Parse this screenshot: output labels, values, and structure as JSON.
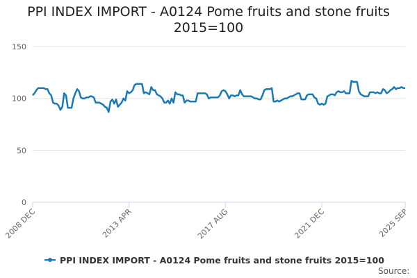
{
  "chart_data": {
    "type": "line",
    "title": "PPI INDEX IMPORT - A0124 Pome fruits and stone fruits 2015=100",
    "source": "Source:",
    "categories": [
      "2008 DEC",
      null,
      null,
      null,
      null,
      null,
      null,
      null,
      null,
      null,
      null,
      null,
      null,
      null,
      null,
      null,
      null,
      null,
      null,
      null,
      null,
      null,
      null,
      null,
      null,
      null,
      null,
      null,
      null,
      null,
      null,
      null,
      null,
      null,
      null,
      null,
      null,
      null,
      null,
      null,
      null,
      null,
      null,
      null,
      null,
      null,
      null,
      null,
      null,
      null,
      null,
      null,
      "2013 APR",
      null,
      null,
      null,
      null,
      null,
      null,
      null,
      null,
      null,
      null,
      null,
      null,
      null,
      null,
      null,
      null,
      null,
      null,
      null,
      null,
      null,
      null,
      null,
      null,
      null,
      null,
      null,
      null,
      null,
      null,
      null,
      null,
      null,
      null,
      null,
      null,
      null,
      null,
      null,
      null,
      null,
      null,
      null,
      null,
      null,
      null,
      null,
      null,
      null,
      null,
      null,
      "2017 AUG",
      null,
      null,
      null,
      null,
      null,
      null,
      null,
      null,
      null,
      null,
      null,
      null,
      null,
      null,
      null,
      null,
      null,
      null,
      null,
      null,
      null,
      null,
      null,
      null,
      null,
      null,
      null,
      null,
      null,
      null,
      null,
      null,
      null,
      null,
      null,
      null,
      null,
      null,
      null,
      null,
      null,
      null,
      null,
      null,
      null,
      null,
      null,
      null,
      null,
      null,
      null,
      "2021 DEC",
      null,
      null,
      null,
      null,
      null,
      null,
      null,
      null,
      null,
      null,
      null,
      null,
      null,
      null,
      null,
      null,
      null,
      null,
      null,
      null,
      null,
      null,
      null,
      null,
      null,
      null,
      null,
      null,
      null,
      null,
      null,
      null,
      null,
      null,
      null,
      null,
      null,
      null,
      null,
      null,
      null,
      null,
      null,
      null,
      "2025 SEP"
    ],
    "series": [
      {
        "name": "PPI INDEX IMPORT - A0124 Pome fruits and stone fruits 2015=100",
        "color": "#1a7ab5",
        "values": [
          103,
          105,
          108,
          110,
          110,
          110,
          110,
          109,
          109,
          105,
          103,
          96,
          95,
          95,
          93,
          89,
          92,
          105,
          103,
          91,
          91,
          91,
          100,
          105,
          109,
          107,
          101,
          100,
          100,
          101,
          101,
          102,
          102,
          101,
          96,
          96,
          96,
          95,
          94,
          92,
          91,
          87,
          97,
          99,
          95,
          99,
          92,
          94,
          96,
          100,
          98,
          107,
          105,
          106,
          108,
          113,
          114,
          114,
          114,
          114,
          105,
          106,
          105,
          104,
          111,
          108,
          108,
          104,
          103,
          102,
          100,
          96,
          96,
          98,
          95,
          100,
          96,
          106,
          104,
          104,
          103,
          103,
          96,
          98,
          98,
          97,
          97,
          97,
          97,
          105,
          105,
          105,
          105,
          105,
          104,
          100,
          101,
          101,
          101,
          101,
          101,
          103,
          107,
          108,
          107,
          104,
          100,
          103,
          103,
          102,
          103,
          103,
          108,
          104,
          102,
          102,
          102,
          102,
          102,
          101,
          100,
          100,
          99,
          99,
          103,
          108,
          109,
          109,
          109,
          110,
          97,
          97,
          98,
          97,
          98,
          99,
          100,
          100,
          101,
          102,
          102,
          103,
          104,
          105,
          105,
          99,
          99,
          99,
          103,
          104,
          104,
          104,
          101,
          100,
          95,
          94,
          95,
          94,
          95,
          102,
          103,
          104,
          104,
          103,
          106,
          107,
          106,
          106,
          107,
          105,
          105,
          105,
          117,
          116,
          116,
          116,
          107,
          104,
          103,
          102,
          102,
          102,
          106,
          106,
          106,
          105,
          106,
          105,
          105,
          109,
          108,
          105,
          106,
          108,
          109,
          111,
          109,
          110,
          110,
          111,
          110,
          110
        ]
      }
    ],
    "ylim": [
      0,
      150
    ],
    "yticks": [
      0,
      50,
      100,
      150
    ],
    "grid": true,
    "legend": "bottom"
  }
}
